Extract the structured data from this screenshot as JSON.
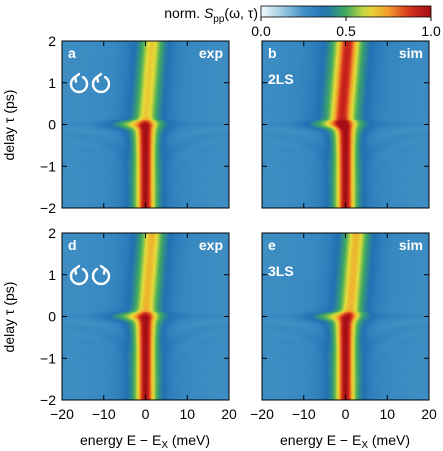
{
  "colorbar": {
    "label_prefix": "norm.",
    "label_symbol": "S",
    "label_sub": "pp",
    "label_args": "(ω, τ)",
    "ticks": [
      0.0,
      0.5,
      1.0
    ],
    "tick_labels": [
      "0.0",
      "0.5",
      "1.0"
    ],
    "range": [
      0,
      1
    ],
    "colormap": [
      "#f7fbff",
      "#9ecae1",
      "#4292c6",
      "#2171b5",
      "#41ab5d",
      "#e4e03a",
      "#f29c2a",
      "#d62f1f",
      "#a50f15"
    ]
  },
  "axes": {
    "xlabel": "energy E − E",
    "xlabel_sub": "X",
    "xlabel_unit": " (meV)",
    "ylabel": "delay τ (ps)",
    "xticks": [
      -20,
      -10,
      0,
      10,
      20
    ],
    "xtick_labels": [
      "−20",
      "−10",
      "0",
      "10",
      "20"
    ],
    "yticks": [
      2,
      1,
      0,
      -1,
      -2
    ],
    "ytick_labels": [
      "2",
      "1",
      "0",
      "−1",
      "−2"
    ],
    "xlim": [
      -20,
      20
    ],
    "ylim": [
      -2,
      2
    ]
  },
  "chart_data": [
    {
      "type": "heatmap",
      "panel": "a",
      "tag": "exp",
      "model": "",
      "icon": "co-circular-arrows-icon",
      "x_label": "energy E − E_X (meV)",
      "y_label": "delay τ (ps)",
      "xlim": [
        -20,
        20
      ],
      "ylim": [
        -2,
        2
      ],
      "features": {
        "peak_energy_meV_negative_delay": 0,
        "peak_value_negative_delay": 1.0,
        "peak_energy_meV_positive_delay": 0,
        "peak_value_positive_delay": 0.55
      }
    },
    {
      "type": "heatmap",
      "panel": "b",
      "tag": "sim",
      "model": "2LS",
      "icon": "",
      "x_label": "energy E − E_X (meV)",
      "y_label": "delay τ (ps)",
      "xlim": [
        -20,
        20
      ],
      "ylim": [
        -2,
        2
      ],
      "features": {
        "peak_energy_meV_negative_delay": 0,
        "peak_value_negative_delay": 1.0,
        "peak_energy_meV_positive_delay": -1,
        "peak_value_positive_delay": 0.9
      }
    },
    {
      "type": "heatmap",
      "panel": "d",
      "tag": "exp",
      "model": "",
      "icon": "counter-circular-arrows-icon",
      "x_label": "energy E − E_X (meV)",
      "y_label": "delay τ (ps)",
      "xlim": [
        -20,
        20
      ],
      "ylim": [
        -2,
        2
      ],
      "features": {
        "peak_energy_meV_negative_delay": 0,
        "peak_value_negative_delay": 1.0,
        "peak_energy_meV_positive_delay": 0,
        "peak_value_positive_delay": 0.6
      }
    },
    {
      "type": "heatmap",
      "panel": "e",
      "tag": "sim",
      "model": "3LS",
      "icon": "",
      "x_label": "energy E − E_X (meV)",
      "y_label": "delay τ (ps)",
      "xlim": [
        -20,
        20
      ],
      "ylim": [
        -2,
        2
      ],
      "features": {
        "peak_energy_meV_negative_delay": 0,
        "peak_value_negative_delay": 1.0,
        "peak_energy_meV_positive_delay": 1,
        "peak_value_positive_delay": 0.6
      }
    }
  ]
}
